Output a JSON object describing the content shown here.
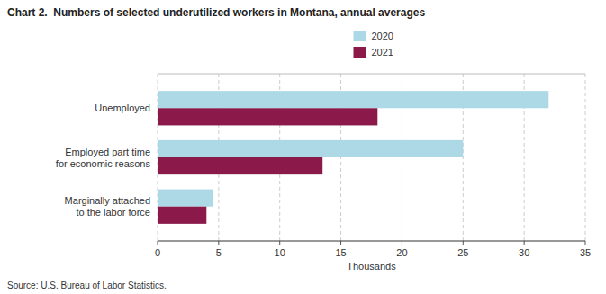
{
  "chart_data": {
    "type": "bar",
    "orientation": "horizontal",
    "title": "Chart 2.  Numbers of selected underutilized workers in Montana, annual averages",
    "categories": [
      "Marginally attached\nto the labor force",
      "Employed part time\nfor economic reasons",
      "Unemployed"
    ],
    "series": [
      {
        "name": "2020",
        "color": "#add8e6",
        "values": [
          4.5,
          25.0,
          32.0
        ]
      },
      {
        "name": "2021",
        "color": "#8b1a4a",
        "values": [
          4.0,
          13.5,
          18.0
        ]
      }
    ],
    "xlim": [
      0,
      35
    ],
    "xticks": [
      0,
      5,
      10,
      15,
      20,
      25,
      30,
      35
    ],
    "xlabel": "Thousands",
    "source": "Source: U.S. Bureau of Labor Statistics.",
    "grid": true,
    "legend": "top"
  }
}
